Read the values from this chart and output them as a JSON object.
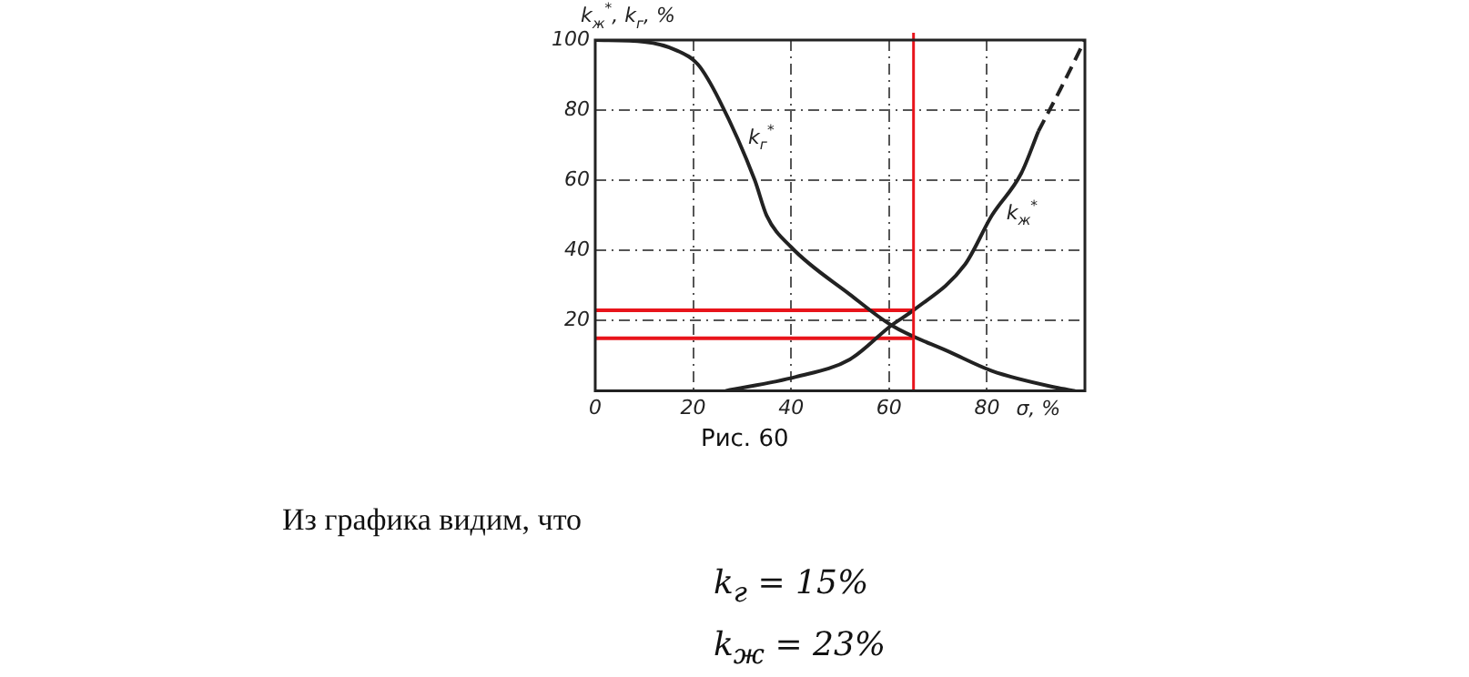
{
  "chart_data": {
    "type": "line",
    "ylabel": "k$_{ж}$$^{*}$, k$_{г}$, %",
    "xlabel": "σ, %",
    "series": [
      {
        "name": "k$_{г}$$^{*}$",
        "color": "#222222",
        "x": [
          0,
          10,
          16.7,
          21,
          25.3,
          32.6,
          35,
          40,
          52,
          60.5,
          72.5,
          81,
          94,
          98
        ],
        "values": [
          100,
          99.5,
          97,
          93,
          83,
          60,
          50,
          41,
          27.5,
          18.7,
          11,
          5.7,
          1,
          0
        ]
      },
      {
        "name": "k$_{ж}$$^{*}$",
        "color": "#222222",
        "x": [
          26.6,
          41,
          52,
          60.5,
          65,
          75.5,
          81,
          87,
          90.5
        ],
        "values": [
          0,
          4,
          9,
          18.7,
          23,
          36,
          50,
          62,
          74
        ]
      },
      {
        "color": "#222222",
        "line_style": "dashed",
        "x": [
          90.5,
          95,
          100
        ],
        "values": [
          74,
          86,
          100
        ]
      },
      {
        "color": "#e8141b",
        "x": [
          0,
          65
        ],
        "values": [
          23,
          23
        ]
      },
      {
        "color": "#e8141b",
        "x": [
          0,
          65
        ],
        "values": [
          15,
          15
        ]
      }
    ],
    "ref_lines": [
      {
        "axis": "x",
        "value": 65,
        "color": "#e8141b"
      }
    ],
    "xlim": [
      0,
      100
    ],
    "xticks": [
      0,
      20,
      40,
      60,
      80
    ],
    "ylim": [
      0,
      100
    ],
    "yticks": [
      20,
      40,
      60,
      80,
      100
    ],
    "grid": true,
    "legend": false,
    "marker": "none",
    "line_style": "solid",
    "annotations": [
      "Рис. 60",
      "Из графика видим, что",
      "k$_{г}$ = 15%",
      "k$_{ж}$ = 23%"
    ]
  }
}
